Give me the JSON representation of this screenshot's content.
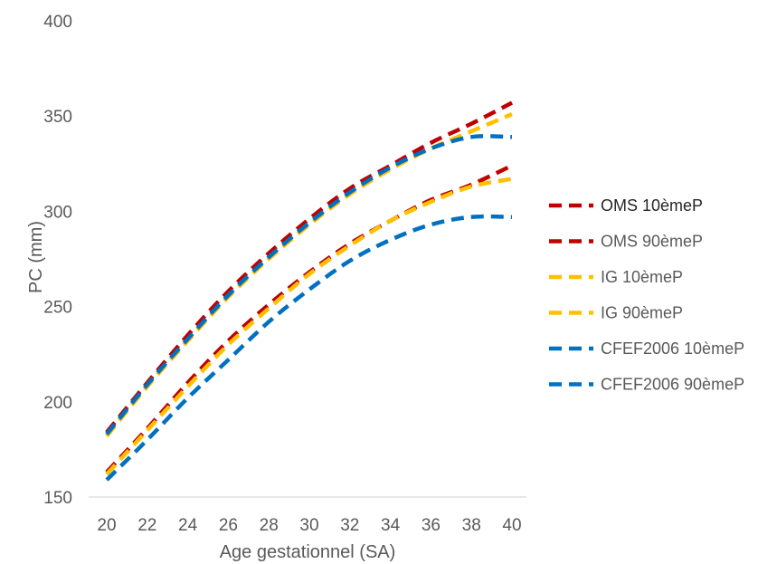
{
  "chart_data": {
    "type": "line",
    "xlabel": "Age gestationnel (SA)",
    "ylabel": "PC (mm)",
    "xlim": [
      20,
      40
    ],
    "ylim": [
      150,
      400
    ],
    "x_ticks": [
      "20",
      "22",
      "24",
      "26",
      "28",
      "30",
      "32",
      "34",
      "36",
      "38",
      "40"
    ],
    "y_ticks": [
      "150",
      "200",
      "250",
      "300",
      "350",
      "400"
    ],
    "grid": false,
    "legend_position": "right",
    "line_style": "dashed",
    "x": [
      20,
      22,
      24,
      26,
      28,
      30,
      32,
      34,
      36,
      38,
      40
    ],
    "series": [
      {
        "name": "OMS 10èmeP",
        "color": "#C00000",
        "values": [
          163,
          186,
          210,
          232,
          251,
          268,
          283,
          295,
          306,
          314,
          324
        ]
      },
      {
        "name": "OMS 90èmeP",
        "color": "#C00000",
        "values": [
          184,
          210,
          235,
          258,
          278,
          296,
          312,
          324,
          336,
          346,
          357
        ]
      },
      {
        "name": "IG 10èmeP",
        "color": "#FFC000",
        "values": [
          162,
          185,
          208,
          230,
          249,
          267,
          282,
          295,
          305,
          313,
          317
        ]
      },
      {
        "name": "IG 90èmeP",
        "color": "#FFC000",
        "values": [
          182,
          208,
          232,
          255,
          275,
          293,
          309,
          322,
          333,
          342,
          351
        ]
      },
      {
        "name": "CFEF2006 10èmeP",
        "color": "#0070C0",
        "values": [
          159,
          180,
          202,
          222,
          242,
          259,
          274,
          285,
          293,
          297,
          297
        ]
      },
      {
        "name": "CFEF2006 90èmeP",
        "color": "#0070C0",
        "values": [
          183,
          209,
          233,
          256,
          276,
          294,
          310,
          323,
          333,
          339,
          339
        ]
      }
    ]
  }
}
